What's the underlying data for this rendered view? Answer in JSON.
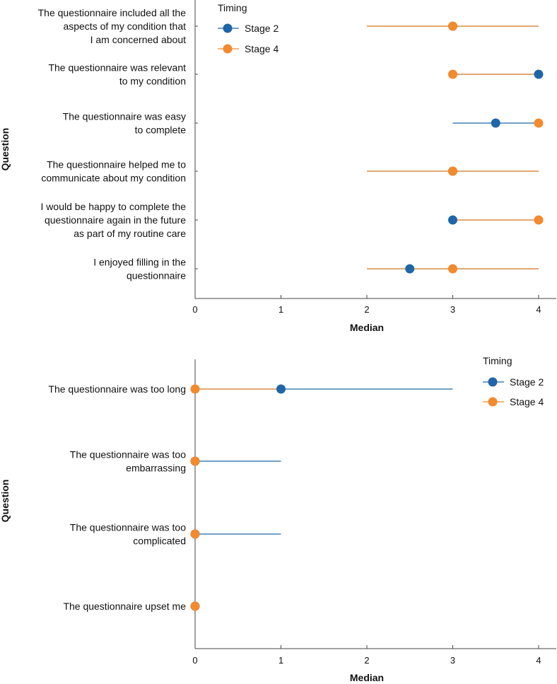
{
  "colors": {
    "stage2": "#1f66a8",
    "stage4": "#f28a2e",
    "axis": "#444444"
  },
  "chart_data": [
    {
      "type": "scatter",
      "xlabel": "Median",
      "ylabel": "Question",
      "xlim": [
        0,
        4
      ],
      "xticks": [
        "0",
        "1",
        "2",
        "3",
        "4"
      ],
      "legend": {
        "title": "Timing",
        "position": "top-left",
        "items": [
          "Stage 2",
          "Stage 4"
        ]
      },
      "questions": [
        {
          "label_lines": [
            "The questionnaire included all the",
            "aspects of my condition that",
            "I am concerned about"
          ],
          "stage2": {
            "median": 3,
            "low": 2,
            "high": 4
          },
          "stage4": {
            "median": 3,
            "low": 2,
            "high": 4
          }
        },
        {
          "label_lines": [
            "The questionnaire was relevant",
            "to my condition"
          ],
          "stage2": {
            "median": 4,
            "low": 3,
            "high": 4
          },
          "stage4": {
            "median": 3,
            "low": 3,
            "high": 4
          }
        },
        {
          "label_lines": [
            "The questionnaire was easy",
            "to complete"
          ],
          "stage2": {
            "median": 3.5,
            "low": 3,
            "high": 4
          },
          "stage4": {
            "median": 4,
            "low": 4,
            "high": 4
          }
        },
        {
          "label_lines": [
            "The questionnaire helped me to",
            "communicate about my condition"
          ],
          "stage2": {
            "median": 3,
            "low": 2,
            "high": 4
          },
          "stage4": {
            "median": 3,
            "low": 2,
            "high": 4
          }
        },
        {
          "label_lines": [
            "I would be happy to complete the",
            "questionnaire again in the future",
            "as part of my routine care"
          ],
          "stage2": {
            "median": 3,
            "low": 3,
            "high": 4
          },
          "stage4": {
            "median": 4,
            "low": 3,
            "high": 4
          }
        },
        {
          "label_lines": [
            "I enjoyed filling in the",
            "questionnaire"
          ],
          "stage2": {
            "median": 2.5,
            "low": 2,
            "high": 4
          },
          "stage4": {
            "median": 3,
            "low": 2,
            "high": 4
          }
        }
      ]
    },
    {
      "type": "scatter",
      "xlabel": "Median",
      "ylabel": "Question",
      "xlim": [
        0,
        4
      ],
      "xticks": [
        "0",
        "1",
        "2",
        "3",
        "4"
      ],
      "legend": {
        "title": "Timing",
        "position": "top-right",
        "items": [
          "Stage 2",
          "Stage 4"
        ]
      },
      "questions": [
        {
          "label_lines": [
            "The questionnaire was too long"
          ],
          "stage2": {
            "median": 1,
            "low": 0,
            "high": 3
          },
          "stage4": {
            "median": 0,
            "low": 0,
            "high": 1
          }
        },
        {
          "label_lines": [
            "The questionnaire was too",
            "embarrassing"
          ],
          "stage2": {
            "median": 0,
            "low": 0,
            "high": 1
          },
          "stage4": {
            "median": 0,
            "low": 0,
            "high": 0
          }
        },
        {
          "label_lines": [
            "The questionnaire was too",
            "complicated"
          ],
          "stage2": {
            "median": 0,
            "low": 0,
            "high": 1
          },
          "stage4": {
            "median": 0,
            "low": 0,
            "high": 0
          }
        },
        {
          "label_lines": [
            "The questionnaire upset me"
          ],
          "stage2": {
            "median": 0,
            "low": 0,
            "high": 0
          },
          "stage4": {
            "median": 0,
            "low": 0,
            "high": 0
          }
        }
      ]
    }
  ]
}
